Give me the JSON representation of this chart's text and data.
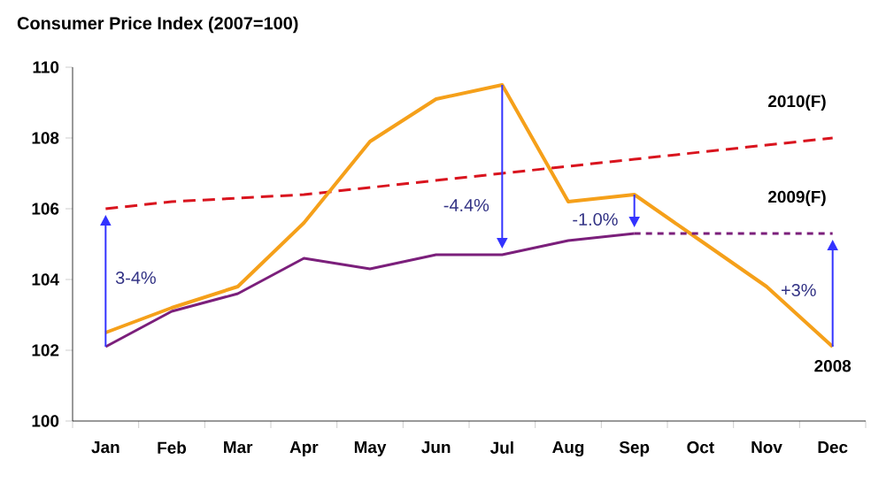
{
  "chart_data": {
    "type": "line",
    "title": "Consumer Price Index (2007=100)",
    "categories": [
      "Jan",
      "Feb",
      "Mar",
      "Apr",
      "May",
      "Jun",
      "Jul",
      "Aug",
      "Sep",
      "Oct",
      "Nov",
      "Dec"
    ],
    "ylim": [
      100,
      110
    ],
    "yticks": [
      100,
      102,
      104,
      106,
      108,
      110
    ],
    "grid": false,
    "legend": false,
    "marker": "none",
    "series": [
      {
        "name": "2010(F)",
        "color": "#d9141e",
        "line_style": "dashed",
        "values": [
          106.0,
          106.2,
          106.3,
          106.4,
          106.6,
          106.8,
          107.0,
          107.2,
          107.4,
          107.6,
          107.8,
          108.0
        ]
      },
      {
        "name": "2008",
        "color": "#f5a01a",
        "line_style": "solid",
        "values": [
          102.5,
          103.2,
          103.8,
          105.6,
          107.9,
          109.1,
          109.5,
          106.2,
          106.4,
          105.1,
          103.8,
          102.1
        ]
      },
      {
        "color": "#7b1f7b",
        "line_style": "solid",
        "values": [
          102.1,
          103.1,
          103.6,
          104.6,
          104.3,
          104.7,
          104.7,
          105.1,
          105.3,
          null,
          null,
          null
        ]
      },
      {
        "name": "2009(F)",
        "color": "#7b1f7b",
        "line_style": "dotted",
        "values": [
          null,
          null,
          null,
          null,
          null,
          null,
          null,
          null,
          105.3,
          105.3,
          105.3,
          105.3
        ]
      }
    ],
    "annotations": [
      "3-4%",
      "-4.4%",
      "-1.0%",
      "+3%"
    ]
  }
}
